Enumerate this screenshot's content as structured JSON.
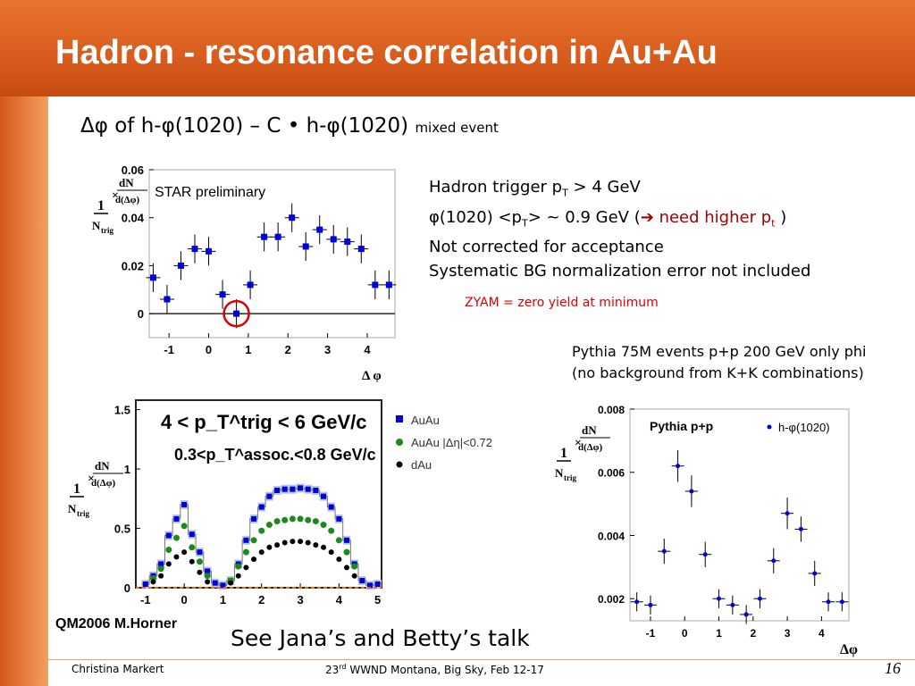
{
  "slide": {
    "title": "Hadron - resonance correlation in Au+Au",
    "subtitle_main": "Δφ  of  h-φ(1020) –  C • h-φ(1020)",
    "subtitle_sub": "mixed event",
    "notes": {
      "line1_pre": "Hadron trigger p",
      "line1_sub": "T",
      "line1_post": " > 4 GeV",
      "line2_pre": "φ(1020)  <p",
      "line2_sub": "T",
      "line2_mid": "> ~ 0.9 GeV (",
      "line2_arrow": "➔",
      "line2_red": " need higher p",
      "line2_red_sub": "t",
      "line2_end": " )",
      "line3": "Not corrected for acceptance",
      "line4": "Systematic BG normalization error not included"
    },
    "zyam_note": "ZYAM = zero yield at minimum",
    "pythia_note_1": "Pythia 75M events p+p 200 GeV only phi",
    "pythia_note_2": "(no background from K+K combinations)",
    "conference_label": "QM2006 M.Horner",
    "talk_note": "See Jana’s and Betty’s talk",
    "footer": {
      "author": "Christina Markert",
      "conf_pre": "23",
      "conf_sup": "rd",
      "conf_post": " WWND Montana, Big Sky, Feb  12-17",
      "page": "16"
    },
    "colors": {
      "title_bg": "#d4581a",
      "marker": "#0000dd",
      "highlight": "#dd0000",
      "green": "#1a8a1a"
    }
  },
  "chart_data": [
    {
      "type": "scatter",
      "annotation": "STAR preliminary",
      "xlabel": "Δ φ",
      "ylabel": "1/N_trig × dN/d(Δφ)",
      "xlim": [
        -1.5,
        4.7
      ],
      "ylim": [
        -0.01,
        0.06
      ],
      "xticks": [
        -1,
        0,
        1,
        2,
        3,
        4
      ],
      "yticks": [
        0,
        0.02,
        0.04,
        0.06
      ],
      "xtick_labels": [
        "-1",
        "0",
        "1",
        "2",
        "3",
        "4"
      ],
      "ytick_labels": [
        "0",
        "0.02",
        "0.04",
        "0.06"
      ],
      "series": [
        {
          "x": [
            -1.4,
            -1.05,
            -0.7,
            -0.35,
            0.0,
            0.35,
            0.7,
            1.05,
            1.4,
            1.75,
            2.1,
            2.45,
            2.8,
            3.15,
            3.5,
            3.85,
            4.2,
            4.55
          ],
          "y": [
            0.015,
            0.006,
            0.02,
            0.027,
            0.026,
            0.008,
            0.0,
            0.012,
            0.032,
            0.032,
            0.04,
            0.028,
            0.035,
            0.031,
            0.03,
            0.027,
            0.012,
            0.012
          ],
          "err": [
            0.006,
            0.006,
            0.006,
            0.006,
            0.006,
            0.006,
            0.006,
            0.006,
            0.006,
            0.006,
            0.006,
            0.006,
            0.006,
            0.006,
            0.006,
            0.006,
            0.006,
            0.006
          ]
        }
      ],
      "highlight": {
        "x": 0.7,
        "y": 0.0
      }
    },
    {
      "type": "bar",
      "title": "4 < p_T^trig < 6 GeV/c",
      "subtitle": "0.3<p_T^assoc.<0.8 GeV/c",
      "ylabel": "1/N_trig × dN/d(Δφ)",
      "xlim": [
        -1.25,
        5.1
      ],
      "ylim": [
        0,
        1.58
      ],
      "xticks": [
        -1,
        0,
        1,
        2,
        3,
        4,
        5
      ],
      "yticks": [
        0,
        0.5,
        1,
        1.5
      ],
      "xtick_labels": [
        "-1",
        "0",
        "1",
        "2",
        "3",
        "4",
        "5"
      ],
      "ytick_labels": [
        "0",
        "0.5",
        "1",
        "1.5"
      ],
      "legend": [
        "AuAu",
        "AuAu |Δη|<0.72",
        "dAu"
      ],
      "series": [
        {
          "name": "AuAu",
          "x": [
            -1.0,
            -0.8,
            -0.6,
            -0.4,
            -0.2,
            0.0,
            0.2,
            0.4,
            0.6,
            0.8,
            1.0,
            1.2,
            1.4,
            1.6,
            1.8,
            2.0,
            2.2,
            2.4,
            2.6,
            2.8,
            3.0,
            3.2,
            3.4,
            3.6,
            3.8,
            4.0,
            4.2,
            4.4,
            4.6,
            4.8,
            5.0
          ],
          "y": [
            0.03,
            0.1,
            0.2,
            0.44,
            0.58,
            0.7,
            0.45,
            0.3,
            0.14,
            0.04,
            0.02,
            0.06,
            0.2,
            0.4,
            0.58,
            0.68,
            0.77,
            0.82,
            0.83,
            0.83,
            0.84,
            0.83,
            0.82,
            0.77,
            0.68,
            0.58,
            0.4,
            0.2,
            0.06,
            0.02,
            0.03
          ]
        },
        {
          "name": "AuAu |Δη|<0.72",
          "x": [
            -0.8,
            -0.6,
            -0.4,
            -0.2,
            0.0,
            0.2,
            0.4,
            0.6,
            1.2,
            1.4,
            1.6,
            1.8,
            2.0,
            2.2,
            2.4,
            2.6,
            2.8,
            3.0,
            3.2,
            3.4,
            3.6,
            3.8,
            4.0,
            4.2,
            4.4
          ],
          "y": [
            0.08,
            0.16,
            0.32,
            0.42,
            0.52,
            0.34,
            0.22,
            0.1,
            0.06,
            0.18,
            0.3,
            0.4,
            0.48,
            0.53,
            0.56,
            0.57,
            0.58,
            0.58,
            0.57,
            0.56,
            0.53,
            0.48,
            0.4,
            0.3,
            0.18
          ]
        },
        {
          "name": "dAu",
          "x": [
            -0.8,
            -0.6,
            -0.4,
            -0.2,
            0.0,
            0.2,
            0.4,
            0.6,
            1.2,
            1.4,
            1.6,
            1.8,
            2.0,
            2.2,
            2.4,
            2.6,
            2.8,
            3.0,
            3.2,
            3.4,
            3.6,
            3.8,
            4.0,
            4.2,
            4.4
          ],
          "y": [
            0.05,
            0.1,
            0.2,
            0.26,
            0.3,
            0.22,
            0.13,
            0.05,
            0.04,
            0.1,
            0.17,
            0.24,
            0.3,
            0.34,
            0.36,
            0.38,
            0.39,
            0.39,
            0.38,
            0.36,
            0.34,
            0.3,
            0.24,
            0.17,
            0.1
          ]
        }
      ],
      "zero_line": 0.0
    },
    {
      "type": "scatter",
      "annotation": "Pythia p+p",
      "xlabel": "Δφ",
      "ylabel": "1/N_trig × dN/d(Δφ)",
      "xlim": [
        -1.6,
        4.8
      ],
      "ylim": [
        0.0013,
        0.008
      ],
      "xticks": [
        -1,
        0,
        1,
        2,
        3,
        4
      ],
      "yticks": [
        0.002,
        0.004,
        0.006,
        0.008
      ],
      "xtick_labels": [
        "-1",
        "0",
        "1",
        "2",
        "3",
        "4"
      ],
      "ytick_labels": [
        "0.002",
        "0.004",
        "0.006",
        "0.008"
      ],
      "legend": [
        "h-φ(1020)"
      ],
      "series": [
        {
          "name": "h-φ(1020)",
          "x": [
            -1.4,
            -1.0,
            -0.6,
            -0.2,
            0.2,
            0.6,
            1.0,
            1.4,
            1.8,
            2.2,
            2.6,
            3.0,
            3.4,
            3.8,
            4.2,
            4.6
          ],
          "y": [
            0.0019,
            0.0018,
            0.0035,
            0.0062,
            0.0054,
            0.0034,
            0.002,
            0.0018,
            0.0015,
            0.002,
            0.0032,
            0.0047,
            0.0042,
            0.0028,
            0.0019,
            0.0019
          ],
          "err": [
            0.0003,
            0.0003,
            0.0004,
            0.0005,
            0.0005,
            0.0004,
            0.0003,
            0.0003,
            0.0003,
            0.0003,
            0.0004,
            0.0005,
            0.0004,
            0.0004,
            0.0003,
            0.0003
          ]
        }
      ]
    }
  ]
}
